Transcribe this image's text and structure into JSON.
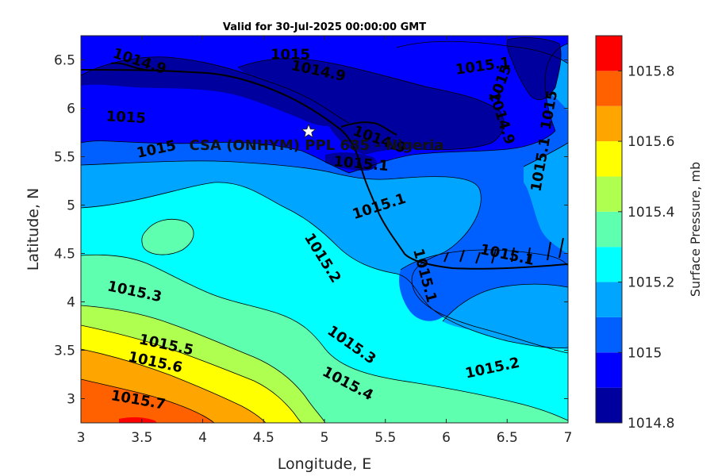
{
  "chart_data": {
    "type": "contour",
    "title": "Valid for 30-Jul-2025 00:00:00 GMT",
    "xlabel": "Longitude, E",
    "ylabel": "Latitude, N",
    "xlim": [
      3,
      7
    ],
    "ylim": [
      2.75,
      6.75
    ],
    "xticks": [
      "3",
      "3.5",
      "4",
      "4.5",
      "5",
      "5.5",
      "6",
      "6.5",
      "7"
    ],
    "yticks": [
      "3",
      "3.5",
      "4",
      "4.5",
      "5",
      "5.5",
      "6",
      "6.5"
    ],
    "colorbar": {
      "label": "Surface Pressure, mb",
      "range": [
        1014.8,
        1015.9
      ],
      "levels": [
        1014.8,
        1014.9,
        1015.0,
        1015.1,
        1015.2,
        1015.3,
        1015.4,
        1015.5,
        1015.6,
        1015.7,
        1015.8,
        1015.9
      ],
      "colors": [
        "#00009f",
        "#0000ff",
        "#0060ff",
        "#00a5ff",
        "#00ffff",
        "#5fffb0",
        "#aeff50",
        "#ffff00",
        "#ffa500",
        "#ff6000",
        "#ff0000",
        "#af0000"
      ],
      "tick_labels": [
        "1014.8",
        "1015",
        "1015.2",
        "1015.4",
        "1015.6",
        "1015.8"
      ]
    },
    "contour_labels": [
      {
        "text": "1014.9",
        "lon": 3.48,
        "lat": 6.48,
        "rotate": 18
      },
      {
        "text": "1015",
        "lon": 4.72,
        "lat": 6.55,
        "rotate": 0
      },
      {
        "text": "1014.9",
        "lon": 4.95,
        "lat": 6.38,
        "rotate": 12
      },
      {
        "text": "1015.1",
        "lon": 6.3,
        "lat": 6.43,
        "rotate": -8
      },
      {
        "text": "1015",
        "lon": 3.37,
        "lat": 5.9,
        "rotate": 3
      },
      {
        "text": "1015",
        "lon": 6.45,
        "lat": 6.25,
        "rotate": -70
      },
      {
        "text": "1014.9",
        "lon": 6.45,
        "lat": 5.9,
        "rotate": 72
      },
      {
        "text": "1015",
        "lon": 6.85,
        "lat": 5.98,
        "rotate": -80
      },
      {
        "text": "1015",
        "lon": 3.62,
        "lat": 5.57,
        "rotate": -12
      },
      {
        "text": "1014.9",
        "lon": 5.45,
        "lat": 5.67,
        "rotate": 20
      },
      {
        "text": "1015.1",
        "lon": 6.78,
        "lat": 5.42,
        "rotate": -80
      },
      {
        "text": "1015.1",
        "lon": 5.3,
        "lat": 5.42,
        "rotate": 5
      },
      {
        "text": "1015.1",
        "lon": 5.45,
        "lat": 4.98,
        "rotate": -18
      },
      {
        "text": "1015.2",
        "lon": 4.98,
        "lat": 4.45,
        "rotate": 58
      },
      {
        "text": "1015.1",
        "lon": 6.5,
        "lat": 4.48,
        "rotate": 12
      },
      {
        "text": "1015.1",
        "lon": 5.82,
        "lat": 4.27,
        "rotate": 75
      },
      {
        "text": "1015.3",
        "lon": 3.44,
        "lat": 4.1,
        "rotate": 12
      },
      {
        "text": "1015.3",
        "lon": 5.22,
        "lat": 3.55,
        "rotate": 35
      },
      {
        "text": "1015.2",
        "lon": 6.38,
        "lat": 3.31,
        "rotate": -12
      },
      {
        "text": "1015.5",
        "lon": 3.7,
        "lat": 3.55,
        "rotate": 12
      },
      {
        "text": "1015.6",
        "lon": 3.61,
        "lat": 3.37,
        "rotate": 12
      },
      {
        "text": "1015.4",
        "lon": 5.19,
        "lat": 3.15,
        "rotate": 28
      },
      {
        "text": "1015.7",
        "lon": 3.47,
        "lat": 2.98,
        "rotate": 10
      }
    ],
    "marker": {
      "label": "CSA (ONHYM) PPL 685 - Nigeria",
      "lon": 4.87,
      "lat": 5.76,
      "symbol": "star"
    }
  }
}
